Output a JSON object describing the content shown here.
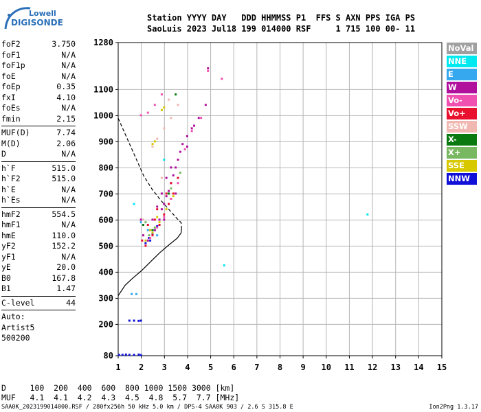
{
  "logo": {
    "line1": "Lowell",
    "line2": "DIGISONDE"
  },
  "header": {
    "line1": "Station YYYY DAY   DDD HHMMSS P1  FFS S AXN PPS IGA PS",
    "line2": "SaoLuis 2023 Jul18 199 014000 RSF     1 715 100 00- 11"
  },
  "params": [
    {
      "k": "foF2",
      "v": "3.750"
    },
    {
      "k": "foF1",
      "v": "N/A"
    },
    {
      "k": "foF1p",
      "v": "N/A"
    },
    {
      "k": "foE",
      "v": "N/A"
    },
    {
      "k": "foEp",
      "v": "0.35"
    },
    {
      "k": "fxI",
      "v": "4.10"
    },
    {
      "k": "foEs",
      "v": "N/A"
    },
    {
      "k": "fmin",
      "v": "2.15"
    },
    {
      "sep": true
    },
    {
      "k": "MUF(D)",
      "v": "7.74"
    },
    {
      "k": "M(D)",
      "v": "2.06"
    },
    {
      "k": "D",
      "v": "N/A"
    },
    {
      "sep": true
    },
    {
      "k": "h`F",
      "v": "515.0"
    },
    {
      "k": "h`F2",
      "v": "515.0"
    },
    {
      "k": "h`E",
      "v": "N/A"
    },
    {
      "k": "h`Es",
      "v": "N/A"
    },
    {
      "sep": true
    },
    {
      "k": "hmF2",
      "v": "554.5"
    },
    {
      "k": "hmF1",
      "v": "N/A"
    },
    {
      "k": "hmE",
      "v": "110.0"
    },
    {
      "k": "yF2",
      "v": "152.2"
    },
    {
      "k": "yF1",
      "v": "N/A"
    },
    {
      "k": "yE",
      "v": "20.0"
    },
    {
      "k": "B0",
      "v": "167.8"
    },
    {
      "k": "B1",
      "v": "1.47"
    },
    {
      "sep": true
    },
    {
      "k": "C-level",
      "v": "44"
    },
    {
      "sep": true
    }
  ],
  "auto": [
    "Auto:",
    "Artist5",
    "500200"
  ],
  "legend": [
    {
      "label": "NoVal",
      "color": "#a0a0a0"
    },
    {
      "label": "NNE",
      "color": "#00e8f0"
    },
    {
      "label": "E",
      "color": "#36a8f0"
    },
    {
      "label": "W",
      "color": "#b0109c"
    },
    {
      "label": "Vo-",
      "color": "#f050b0"
    },
    {
      "label": "Vo+",
      "color": "#e8102c"
    },
    {
      "label": "SSW",
      "color": "#f0b8b0"
    },
    {
      "label": "X-",
      "color": "#0a7a10"
    },
    {
      "label": "X+",
      "color": "#78b860"
    },
    {
      "label": "SSE",
      "color": "#d8c800"
    },
    {
      "label": "NNW",
      "color": "#1010d8"
    }
  ],
  "footer": {
    "line1": "D     100  200  400  600  800 1000 1500 3000 [km]",
    "line2": "MUF   4.1  4.1  4.2  4.3  4.5  4.8  5.7  7.7 [MHz]",
    "file": "SAA0K_2023199014000.RSF / 280fx256h 50 kHz 5.0 km / DPS-4 SAA0K 903 / 2.6 S 315.8 E",
    "version": "Ion2Png 1.3.17"
  },
  "chart_data": {
    "type": "scatter",
    "xlabel": "",
    "ylabel": "",
    "xlim": [
      1,
      15
    ],
    "ylim": [
      80,
      1280
    ],
    "x_ticks": [
      1,
      2,
      3,
      4,
      5,
      6,
      7,
      8,
      9,
      10,
      11,
      12,
      13,
      14,
      15
    ],
    "y_ticks": [
      80,
      200,
      300,
      400,
      500,
      600,
      700,
      800,
      900,
      1000,
      1100,
      1280
    ],
    "grid": true,
    "series": [
      {
        "name": "NNW",
        "color": "#1010d8",
        "points": [
          [
            1.05,
            82
          ],
          [
            1.2,
            82
          ],
          [
            1.35,
            83
          ],
          [
            1.5,
            82
          ],
          [
            1.7,
            82
          ],
          [
            1.9,
            83
          ],
          [
            2.0,
            81
          ],
          [
            1.5,
            213
          ],
          [
            1.7,
            213
          ],
          [
            1.9,
            212
          ],
          [
            2.0,
            213
          ],
          [
            2.2,
            510
          ],
          [
            2.35,
            530
          ],
          [
            2.5,
            545
          ],
          [
            2.6,
            560
          ],
          [
            2.4,
            520
          ],
          [
            2.7,
            575
          ]
        ]
      },
      {
        "name": "W",
        "color": "#b0109c",
        "points": [
          [
            2.3,
            520
          ],
          [
            2.6,
            560
          ],
          [
            2.8,
            600
          ],
          [
            2.9,
            640
          ],
          [
            3.0,
            660
          ],
          [
            3.1,
            690
          ],
          [
            3.2,
            710
          ],
          [
            3.3,
            740
          ],
          [
            3.4,
            770
          ],
          [
            3.5,
            800
          ],
          [
            3.6,
            830
          ],
          [
            3.7,
            860
          ],
          [
            3.8,
            890
          ],
          [
            4.0,
            920
          ],
          [
            4.2,
            950
          ],
          [
            4.5,
            990
          ],
          [
            4.8,
            1040
          ],
          [
            2.1,
            540
          ],
          [
            2.5,
            600
          ],
          [
            2.7,
            650
          ],
          [
            2.9,
            700
          ],
          [
            3.1,
            760
          ],
          [
            3.3,
            800
          ],
          [
            2.0,
            600
          ],
          [
            3.0,
            600
          ],
          [
            3.5,
            700
          ],
          [
            4.0,
            880
          ],
          [
            4.9,
            1180
          ],
          [
            4.3,
            960
          ]
        ]
      },
      {
        "name": "Vo+",
        "color": "#e8102c",
        "points": [
          [
            2.2,
            500
          ],
          [
            2.5,
            540
          ],
          [
            2.8,
            580
          ],
          [
            3.0,
            620
          ],
          [
            3.2,
            660
          ],
          [
            3.4,
            700
          ],
          [
            3.6,
            760
          ],
          [
            2.4,
            560
          ],
          [
            2.6,
            600
          ],
          [
            3.1,
            700
          ],
          [
            3.3,
            740
          ],
          [
            2.05,
            520
          ],
          [
            2.3,
            580
          ],
          [
            2.7,
            640
          ]
        ]
      },
      {
        "name": "Vo-",
        "color": "#f050b0",
        "points": [
          [
            2.4,
            530
          ],
          [
            2.7,
            570
          ],
          [
            3.0,
            610
          ],
          [
            3.3,
            680
          ],
          [
            3.6,
            740
          ],
          [
            3.9,
            870
          ],
          [
            4.2,
            940
          ],
          [
            4.6,
            990
          ],
          [
            4.9,
            1170
          ],
          [
            5.5,
            1140
          ],
          [
            2.0,
            1000
          ],
          [
            2.3,
            1010
          ],
          [
            2.6,
            1040
          ],
          [
            2.9,
            1080
          ]
        ]
      },
      {
        "name": "SSE",
        "color": "#d8c800",
        "points": [
          [
            2.2,
            520
          ],
          [
            2.5,
            550
          ],
          [
            2.8,
            590
          ],
          [
            3.1,
            640
          ],
          [
            3.4,
            690
          ],
          [
            2.9,
            1020
          ],
          [
            3.0,
            1030
          ],
          [
            2.5,
            890
          ],
          [
            2.6,
            900
          ],
          [
            2.4,
            560
          ],
          [
            2.7,
            610
          ]
        ]
      },
      {
        "name": "SSW",
        "color": "#f0b8b0",
        "points": [
          [
            2.5,
            880
          ],
          [
            2.7,
            910
          ],
          [
            3.0,
            950
          ],
          [
            3.3,
            990
          ],
          [
            3.6,
            1040
          ],
          [
            2.1,
            600
          ],
          [
            2.9,
            760
          ],
          [
            3.2,
            1060
          ]
        ]
      },
      {
        "name": "X+",
        "color": "#78b860",
        "points": [
          [
            2.35,
            540
          ],
          [
            2.6,
            570
          ],
          [
            3.3,
            720
          ],
          [
            3.7,
            780
          ],
          [
            2.2,
            590
          ]
        ]
      },
      {
        "name": "X-",
        "color": "#0a7a10",
        "points": [
          [
            2.5,
            560
          ],
          [
            3.2,
            700
          ],
          [
            3.5,
            1080
          ],
          [
            2.1,
            580
          ]
        ]
      },
      {
        "name": "NNE",
        "color": "#00e8f0",
        "points": [
          [
            5.6,
            425
          ],
          [
            11.8,
            620
          ],
          [
            1.7,
            660
          ],
          [
            3.0,
            830
          ]
        ]
      },
      {
        "name": "E",
        "color": "#36a8f0",
        "points": [
          [
            2.0,
            590
          ],
          [
            2.3,
            560
          ],
          [
            1.6,
            315
          ],
          [
            1.8,
            315
          ],
          [
            2.7,
            540
          ]
        ]
      }
    ],
    "profile_solid": [
      [
        1.0,
        310
      ],
      [
        1.3,
        350
      ],
      [
        1.6,
        375
      ],
      [
        2.0,
        405
      ],
      [
        2.4,
        440
      ],
      [
        2.8,
        475
      ],
      [
        3.2,
        505
      ],
      [
        3.55,
        530
      ],
      [
        3.72,
        550
      ],
      [
        3.74,
        565
      ]
    ],
    "profile_dashed": [
      [
        1.0,
        990
      ],
      [
        1.2,
        950
      ],
      [
        1.5,
        890
      ],
      [
        1.8,
        830
      ],
      [
        2.1,
        770
      ],
      [
        2.45,
        720
      ],
      [
        2.8,
        680
      ],
      [
        3.1,
        650
      ],
      [
        3.35,
        625
      ],
      [
        3.55,
        605
      ],
      [
        3.72,
        590
      ],
      [
        3.74,
        570
      ],
      [
        3.74,
        565
      ]
    ]
  }
}
